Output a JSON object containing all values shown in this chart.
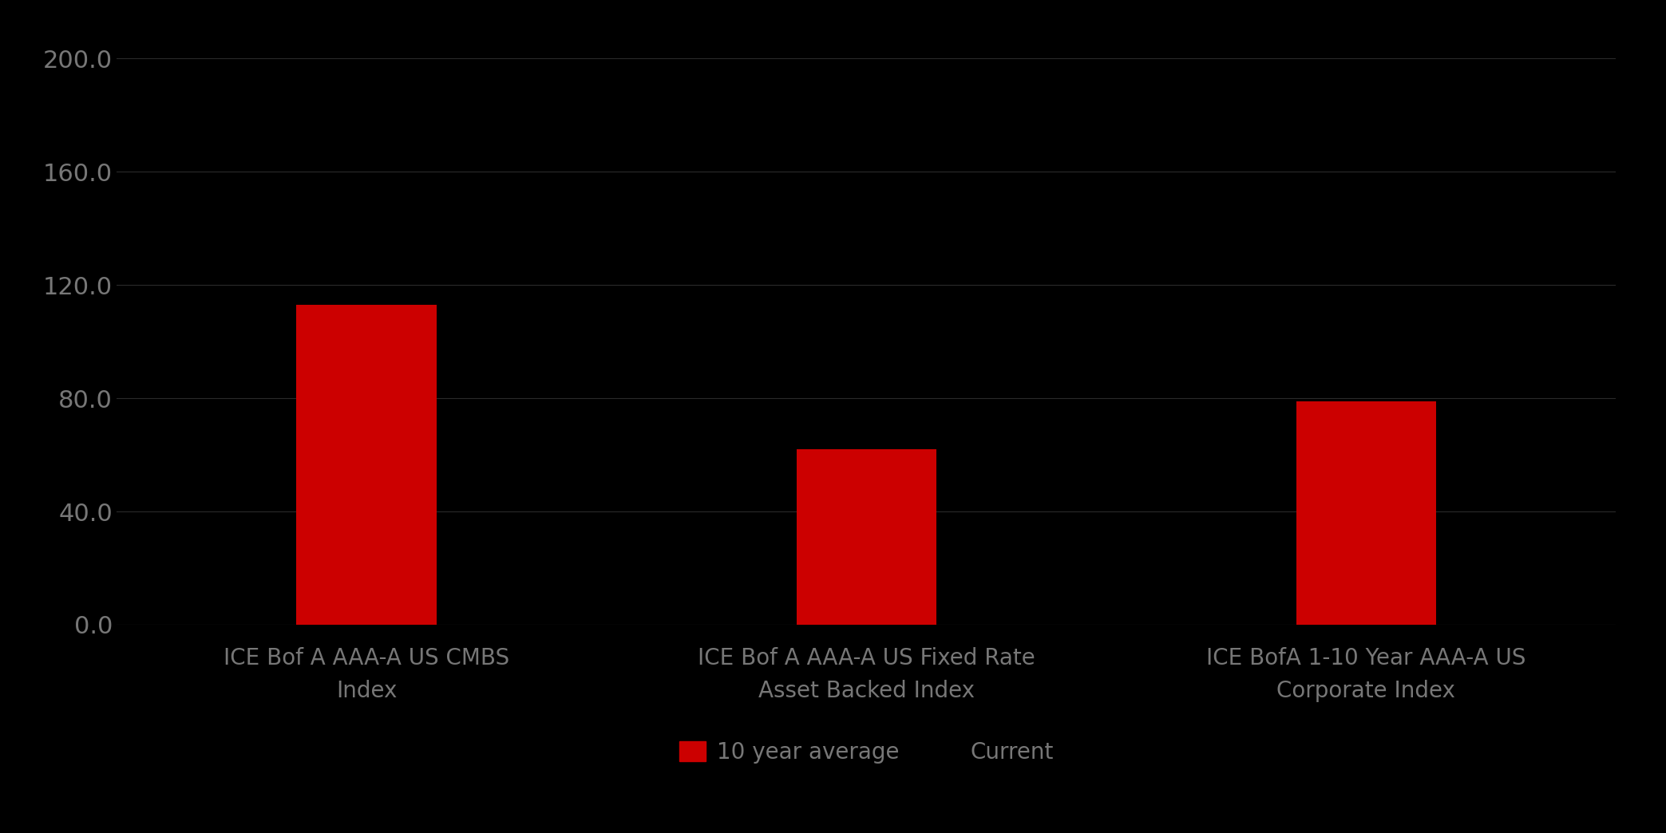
{
  "categories": [
    "ICE Bof A AAA-A US CMBS\nIndex",
    "ICE Bof A AAA-A US Fixed Rate\nAsset Backed Index",
    "ICE BofA 1-10 Year AAA-A US\nCorporate Index"
  ],
  "ten_year_avg": [
    113.0,
    62.0,
    79.0
  ],
  "bar_color": "#CC0000",
  "background_color": "#000000",
  "text_color": "#777777",
  "ylim": [
    0,
    200
  ],
  "yticks": [
    0.0,
    40.0,
    80.0,
    120.0,
    160.0,
    200.0
  ],
  "legend_labels": [
    "10 year average",
    "Current"
  ],
  "bar_width": 0.28,
  "x_positions": [
    0.5,
    1.5,
    2.5
  ],
  "xlim": [
    0.0,
    3.0
  ],
  "figsize": [
    20.87,
    10.44
  ],
  "dpi": 100,
  "tick_fontsize": 22,
  "label_fontsize": 20,
  "legend_fontsize": 20
}
